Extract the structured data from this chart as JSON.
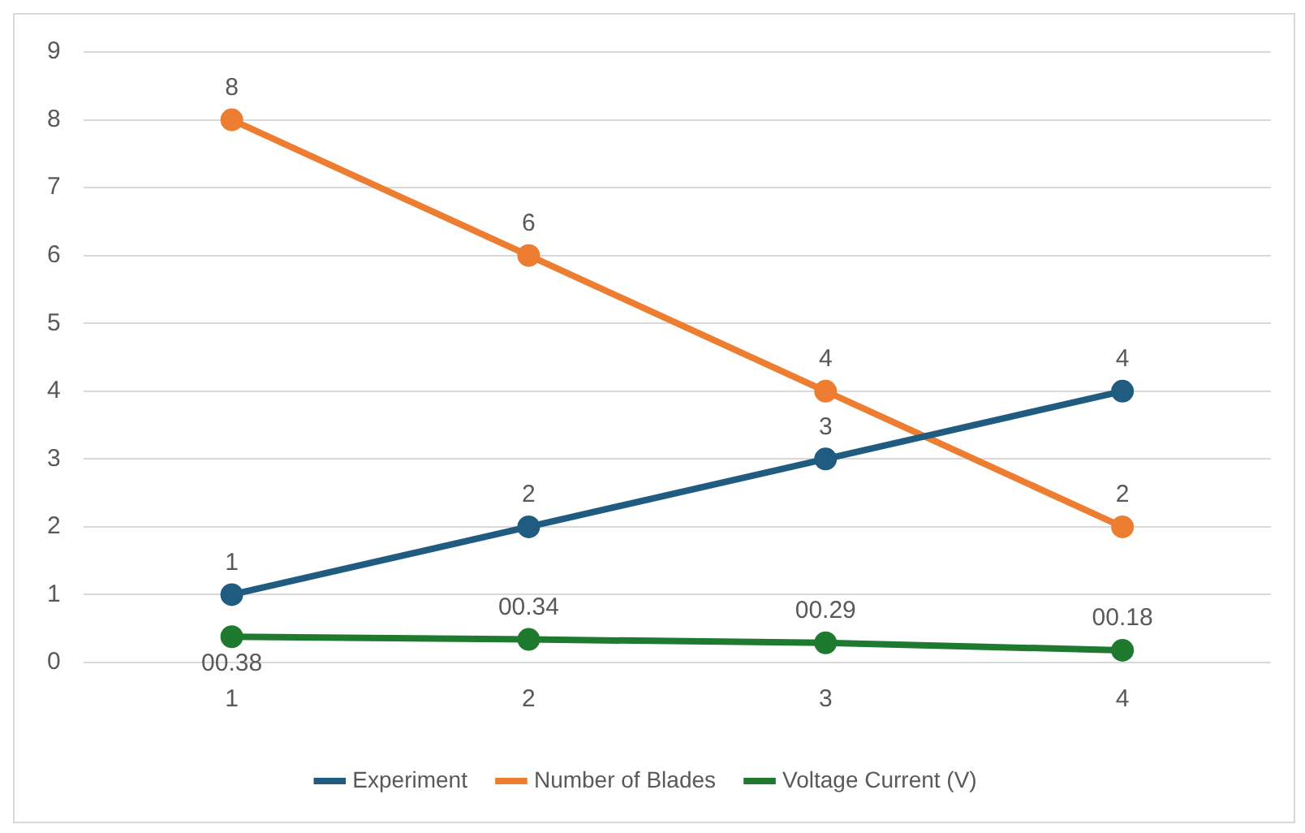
{
  "chart_data": {
    "type": "line",
    "categories": [
      "1",
      "2",
      "3",
      "4"
    ],
    "series": [
      {
        "name": "Experiment",
        "color": "#1f5c80",
        "values": [
          1,
          2,
          3,
          4
        ],
        "value_labels": [
          "1",
          "2",
          "3",
          "4"
        ]
      },
      {
        "name": "Number of Blades",
        "color": "#ed7d31",
        "values": [
          8,
          6,
          4,
          2
        ],
        "value_labels": [
          "8",
          "6",
          "4",
          "2"
        ]
      },
      {
        "name": "Voltage Current (V)",
        "color": "#1e7a2e",
        "values": [
          0.38,
          0.34,
          0.29,
          0.18
        ],
        "value_labels": [
          "00.38",
          "00.34",
          "00.29",
          "00.18"
        ]
      }
    ],
    "ylim": [
      0,
      9
    ],
    "yticks": [
      0,
      1,
      2,
      3,
      4,
      5,
      6,
      7,
      8,
      9
    ],
    "grid": "y",
    "legend": "bottom",
    "marker": "circle",
    "line_style": "solid"
  }
}
